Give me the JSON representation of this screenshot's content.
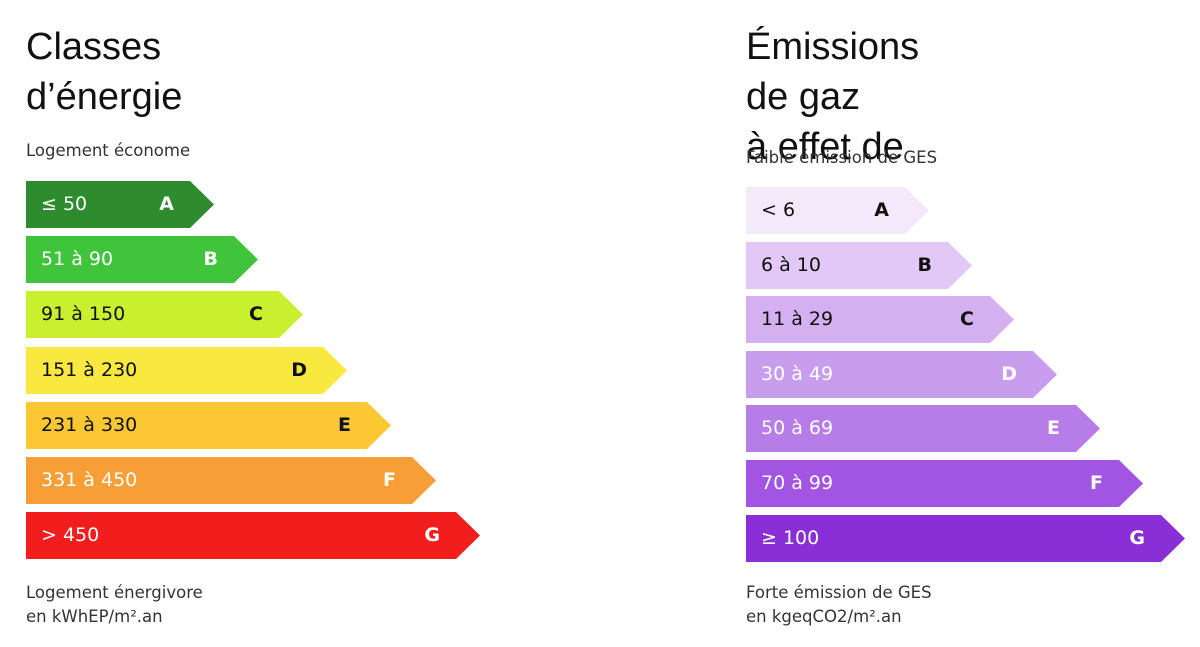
{
  "chart_data": [
    {
      "type": "bar",
      "title": "Classes d’énergie",
      "top_label": "Logement économe",
      "bottom_label_line1": "Logement énergivore",
      "bottom_label_line2": "en kWhEP/m².an",
      "categories": [
        "A",
        "B",
        "C",
        "D",
        "E",
        "F",
        "G"
      ],
      "ranges": [
        "≤ 50",
        "51 à 90",
        "91 à 150",
        "151 à 230",
        "231 à 330",
        "331 à 450",
        "> 450"
      ],
      "colors": [
        "#2e8b2e",
        "#3fc43c",
        "#c8f02e",
        "#f8e840",
        "#fbc834",
        "#f89e36",
        "#f21d1d"
      ],
      "text_colors": [
        "#ffffff",
        "#ffffff",
        "#111111",
        "#111111",
        "#111111",
        "#ffffff",
        "#ffffff"
      ]
    },
    {
      "type": "bar",
      "title": "Émissions de gaz\nà effet de serre",
      "top_label": "Faible émission de GES",
      "bottom_label_line1": "Forte émission de GES",
      "bottom_label_line2": "en kgeqCO2/m².an",
      "categories": [
        "A",
        "B",
        "C",
        "D",
        "E",
        "F",
        "G"
      ],
      "ranges": [
        "< 6",
        "6 à 10",
        "11 à 29",
        "30 à 49",
        "50 à 69",
        "70 à 99",
        "≥ 100"
      ],
      "colors": [
        "#f4e8fb",
        "#e2c8f6",
        "#d4b0f0",
        "#c89ded",
        "#b67de8",
        "#a255e2",
        "#8a2fd8"
      ],
      "text_colors": [
        "#111111",
        "#111111",
        "#111111",
        "#ffffff",
        "#ffffff",
        "#ffffff",
        "#ffffff"
      ]
    }
  ]
}
